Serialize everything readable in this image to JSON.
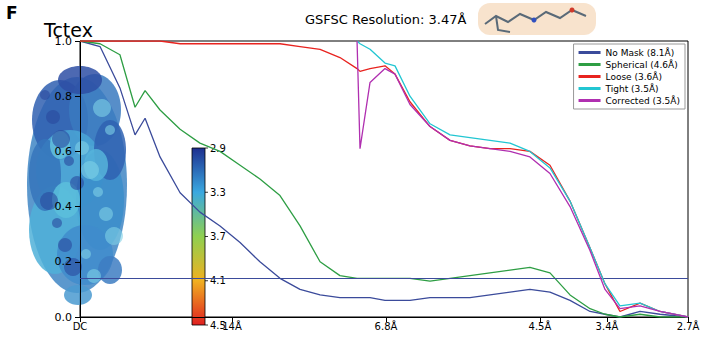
{
  "panel": "F",
  "map_title": "Tctex",
  "colorbar": {
    "range": [
      2.9,
      4.5
    ],
    "ticks": [
      2.9,
      3.3,
      3.7,
      4.1,
      4.5
    ]
  },
  "chart_data": {
    "type": "line",
    "title": "GSFSC Resolution: 3.47Å",
    "x": [
      0,
      0.0122,
      0.0243,
      0.0335,
      0.0396,
      0.0487,
      0.0609,
      0.073,
      0.0852,
      0.0974,
      0.1095,
      0.1217,
      0.1339,
      0.1461,
      0.1582,
      0.1686,
      0.1704,
      0.1765,
      0.1856,
      0.1917,
      0.2008,
      0.213,
      0.2252,
      0.2373,
      0.2495,
      0.2617,
      0.2738,
      0.286,
      0.2982,
      0.3104,
      0.3195,
      0.3286,
      0.3408,
      0.353,
      0.37
    ],
    "series": [
      {
        "name": "No Mask (8.1Å)",
        "color": "#3b4b9b",
        "values": [
          1.0,
          0.98,
          0.83,
          0.66,
          0.72,
          0.58,
          0.45,
          0.38,
          0.33,
          0.27,
          0.2,
          0.14,
          0.1,
          0.08,
          0.07,
          0.07,
          0.07,
          0.07,
          0.06,
          0.06,
          0.06,
          0.07,
          0.07,
          0.07,
          0.08,
          0.09,
          0.1,
          0.09,
          0.06,
          0.02,
          0.01,
          0.0,
          0.02,
          0.01,
          0.0
        ]
      },
      {
        "name": "Spherical (4.6Å)",
        "color": "#2e9e44",
        "values": [
          1.0,
          0.99,
          0.95,
          0.76,
          0.82,
          0.75,
          0.68,
          0.63,
          0.6,
          0.55,
          0.5,
          0.44,
          0.33,
          0.2,
          0.15,
          0.14,
          0.14,
          0.14,
          0.14,
          0.14,
          0.14,
          0.13,
          0.14,
          0.15,
          0.16,
          0.17,
          0.18,
          0.16,
          0.08,
          0.03,
          0.01,
          0.0,
          0.01,
          0.0,
          0.0
        ]
      },
      {
        "name": "Loose (3.6Å)",
        "color": "#e8231f",
        "values": [
          1.0,
          1.0,
          1.0,
          1.0,
          1.0,
          1.0,
          0.99,
          0.99,
          0.99,
          0.99,
          0.99,
          0.99,
          0.98,
          0.97,
          0.94,
          0.9,
          0.89,
          0.9,
          0.91,
          0.88,
          0.78,
          0.69,
          0.64,
          0.62,
          0.61,
          0.61,
          0.6,
          0.55,
          0.42,
          0.25,
          0.12,
          0.02,
          0.05,
          0.02,
          0.0
        ]
      },
      {
        "name": "Tight (3.5Å)",
        "color": "#22c6d2",
        "values": [
          null,
          null,
          null,
          null,
          null,
          null,
          null,
          null,
          null,
          null,
          null,
          null,
          null,
          null,
          null,
          1.0,
          0.99,
          0.97,
          0.92,
          0.91,
          0.8,
          0.7,
          0.66,
          0.65,
          0.64,
          0.63,
          0.6,
          0.54,
          0.42,
          0.25,
          0.12,
          0.04,
          0.05,
          0.02,
          0.0
        ]
      },
      {
        "name": "Corrected (3.5Å)",
        "color": "#b02fb0",
        "values": [
          null,
          null,
          null,
          null,
          null,
          null,
          null,
          null,
          null,
          null,
          null,
          null,
          null,
          null,
          null,
          1.0,
          0.61,
          0.85,
          0.9,
          0.88,
          0.77,
          0.69,
          0.64,
          0.62,
          0.61,
          0.6,
          0.58,
          0.52,
          0.4,
          0.24,
          0.1,
          0.03,
          0.04,
          0.02,
          0.0
        ]
      }
    ],
    "threshold": 0.143,
    "xlim": [
      0,
      0.37
    ],
    "xticks": [
      {
        "value": 0,
        "label": "DC"
      },
      {
        "value": 0.0925,
        "label": "14Å"
      },
      {
        "value": 0.1862,
        "label": "6.8Å"
      },
      {
        "value": 0.2799,
        "label": "4.5Å"
      },
      {
        "value": 0.3207,
        "label": "3.4Å"
      },
      {
        "value": 0.37,
        "label": "2.7Å"
      }
    ],
    "ylim": [
      0,
      1
    ],
    "yticks": [
      {
        "value": 0,
        "label": "0.0"
      },
      0.2,
      0.4,
      0.6,
      0.8,
      {
        "value": 1,
        "label": "1.0"
      }
    ],
    "grid": false,
    "legend": "upper right"
  }
}
